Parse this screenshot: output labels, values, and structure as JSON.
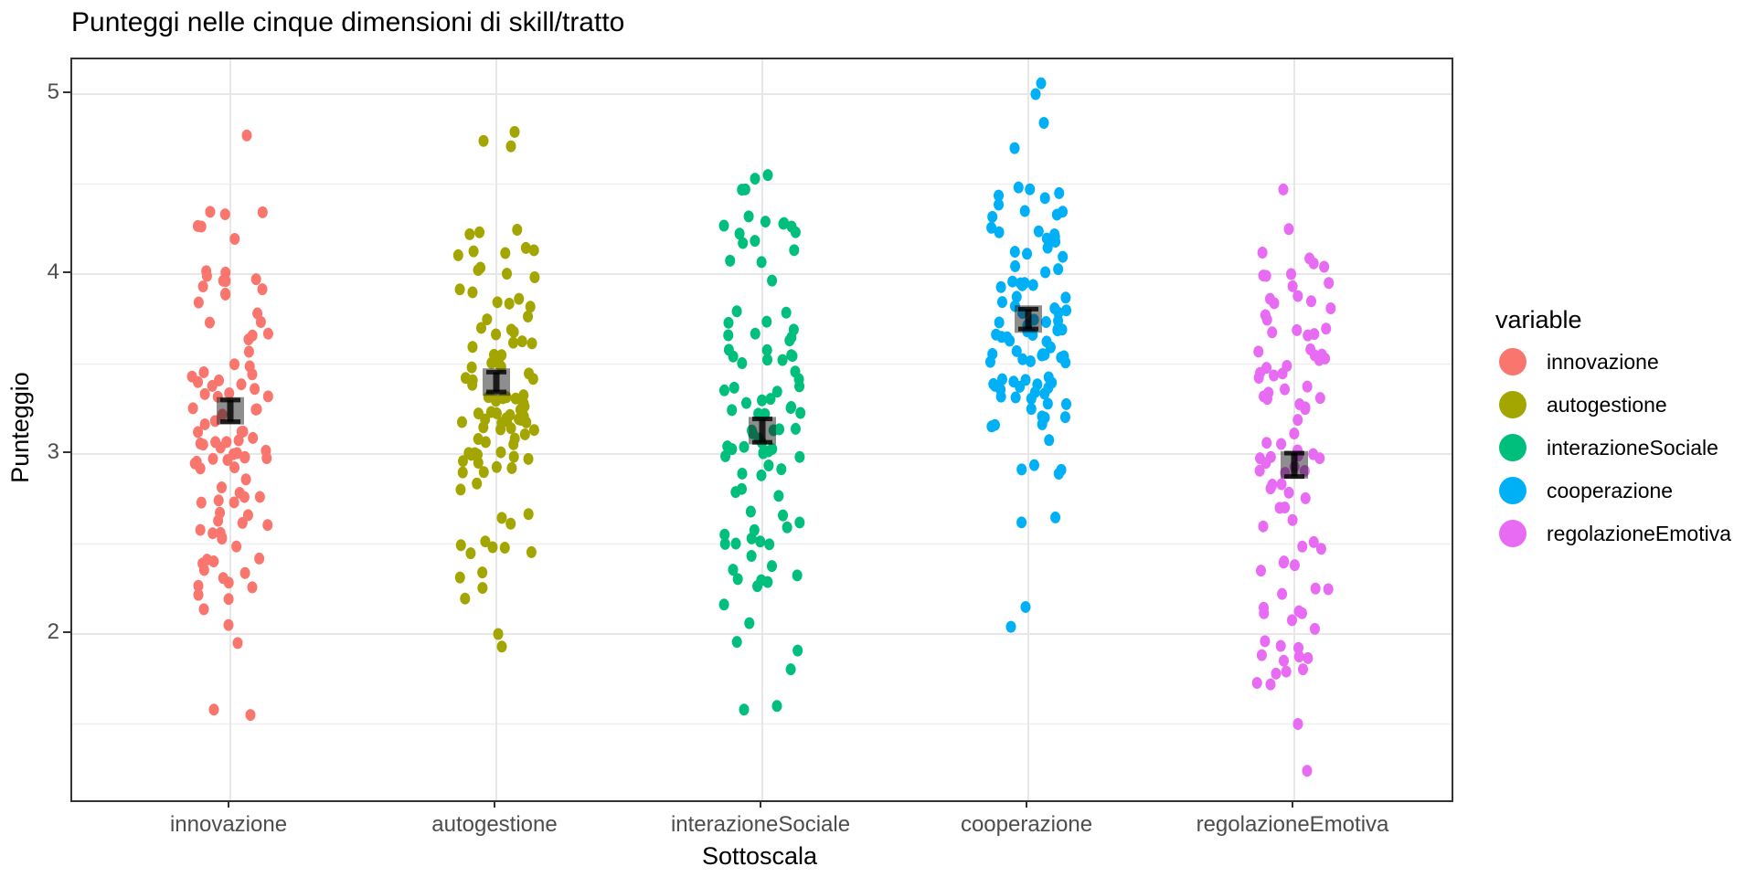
{
  "legend": {
    "title": "variable",
    "items": [
      {
        "label": "innovazione",
        "color": "#F8766D"
      },
      {
        "label": "autogestione",
        "color": "#A3A500"
      },
      {
        "label": "interazioneSociale",
        "color": "#00BF7D"
      },
      {
        "label": "cooperazione",
        "color": "#00B0F6"
      },
      {
        "label": "regolazioneEmotiva",
        "color": "#E76BF3"
      }
    ]
  },
  "chart_data": {
    "type": "scatter",
    "subtype": "jittered strip plot with mean ± standard-error summary markers",
    "title": "Punteggi nelle cinque dimensioni di skill/tratto",
    "xlabel": "Sottoscala",
    "ylabel": "Punteggio",
    "x_categories": [
      "innovazione",
      "autogestione",
      "interazioneSociale",
      "cooperazione",
      "regolazioneEmotiva"
    ],
    "ylim": [
      1.08,
      5.19
    ],
    "y_tick_values": [
      5,
      4,
      3,
      2
    ],
    "y_minor_gridlines": [
      4.5,
      3.5,
      2.5,
      1.5
    ],
    "grid": "major horizontal + vertical at categories, minor horizontal at halves",
    "legend_position": "right",
    "panel_border_color": "#333333",
    "major_grid_color": "#e7e7e7",
    "minor_grid_color": "#efefef",
    "tick_label_color": "#4d4d4d",
    "mean_marker": {
      "shape": "translucent black square with errorbar (mean ± se)",
      "square_color": "rgba(30,30,30,0.5)",
      "errorbar_color": "rgba(0,0,0,0.8)"
    },
    "series": [
      {
        "name": "innovazione",
        "color": "#F8766D",
        "n": 103,
        "mean": 3.24,
        "se": 0.06,
        "min": 1.55,
        "max": 4.78,
        "seed": 101,
        "mixture": [
          {
            "m": 3.6,
            "s": 0.3,
            "w": 0.3
          },
          {
            "m": 3.15,
            "s": 0.18,
            "w": 0.22
          },
          {
            "m": 2.7,
            "s": 0.28,
            "w": 0.28
          },
          {
            "m": 4.35,
            "s": 0.22,
            "w": 0.1
          },
          {
            "m": 2.25,
            "s": 0.12,
            "w": 0.1
          }
        ],
        "clamp": [
          2.0,
          4.62
        ],
        "outliers": [
          [
            -18,
            1.58
          ],
          [
            22,
            1.55
          ],
          [
            18,
            4.77
          ],
          [
            -2,
            2.05
          ],
          [
            8,
            1.95
          ]
        ]
      },
      {
        "name": "autogestione",
        "color": "#A3A500",
        "n": 105,
        "mean": 3.4,
        "se": 0.055,
        "min": 1.92,
        "max": 4.8,
        "seed": 202,
        "mixture": [
          {
            "m": 3.65,
            "s": 0.28,
            "w": 0.3
          },
          {
            "m": 3.3,
            "s": 0.15,
            "w": 0.25
          },
          {
            "m": 2.95,
            "s": 0.22,
            "w": 0.25
          },
          {
            "m": 4.05,
            "s": 0.15,
            "w": 0.12
          },
          {
            "m": 2.45,
            "s": 0.18,
            "w": 0.08
          }
        ],
        "clamp": [
          2.1,
          4.45
        ],
        "outliers": [
          [
            -14,
            4.74
          ],
          [
            20,
            4.79
          ],
          [
            16,
            4.71
          ],
          [
            6,
            1.93
          ],
          [
            2,
            2.0
          ]
        ]
      },
      {
        "name": "interazioneSociale",
        "color": "#00BF7D",
        "n": 99,
        "mean": 3.13,
        "se": 0.065,
        "min": 1.57,
        "max": 4.55,
        "seed": 303,
        "mixture": [
          {
            "m": 3.3,
            "s": 0.22,
            "w": 0.3
          },
          {
            "m": 2.55,
            "s": 0.3,
            "w": 0.28
          },
          {
            "m": 4.2,
            "s": 0.18,
            "w": 0.17
          },
          {
            "m": 3.65,
            "s": 0.12,
            "w": 0.1
          },
          {
            "m": 3.05,
            "s": 0.12,
            "w": 0.1
          },
          {
            "m": 1.95,
            "s": 0.12,
            "w": 0.05
          }
        ],
        "clamp": [
          1.75,
          4.5
        ],
        "outliers": [
          [
            -20,
            1.58
          ],
          [
            16,
            1.6
          ],
          [
            6,
            4.55
          ],
          [
            -8,
            4.53
          ]
        ]
      },
      {
        "name": "cooperazione",
        "color": "#00B0F6",
        "n": 103,
        "mean": 3.75,
        "se": 0.055,
        "min": 2.04,
        "max": 5.06,
        "seed": 404,
        "mixture": [
          {
            "m": 3.95,
            "s": 0.2,
            "w": 0.35
          },
          {
            "m": 3.6,
            "s": 0.18,
            "w": 0.25
          },
          {
            "m": 4.3,
            "s": 0.15,
            "w": 0.15
          },
          {
            "m": 3.3,
            "s": 0.15,
            "w": 0.15
          },
          {
            "m": 2.95,
            "s": 0.18,
            "w": 0.07
          },
          {
            "m": 2.7,
            "s": 0.1,
            "w": 0.03
          }
        ],
        "clamp": [
          2.45,
          4.88
        ],
        "outliers": [
          [
            14,
            5.06
          ],
          [
            8,
            5.0
          ],
          [
            -3,
            2.15
          ],
          [
            -19,
            2.04
          ],
          [
            17,
            4.84
          ],
          [
            -15,
            4.7
          ]
        ]
      },
      {
        "name": "regolazioneEmotiva",
        "color": "#E76BF3",
        "n": 98,
        "mean": 2.94,
        "se": 0.065,
        "min": 1.24,
        "max": 4.47,
        "seed": 505,
        "mixture": [
          {
            "m": 3.45,
            "s": 0.25,
            "w": 0.27
          },
          {
            "m": 2.85,
            "s": 0.25,
            "w": 0.25
          },
          {
            "m": 2.35,
            "s": 0.22,
            "w": 0.2
          },
          {
            "m": 3.85,
            "s": 0.13,
            "w": 0.13
          },
          {
            "m": 2.0,
            "s": 0.15,
            "w": 0.1
          },
          {
            "m": 4.08,
            "s": 0.05,
            "w": 0.05
          }
        ],
        "clamp": [
          1.6,
          4.15
        ],
        "outliers": [
          [
            -12,
            4.47
          ],
          [
            -6,
            4.25
          ],
          [
            4,
            1.5
          ],
          [
            14,
            1.24
          ],
          [
            -26,
            1.72
          ],
          [
            -20,
            1.78
          ]
        ]
      }
    ]
  }
}
